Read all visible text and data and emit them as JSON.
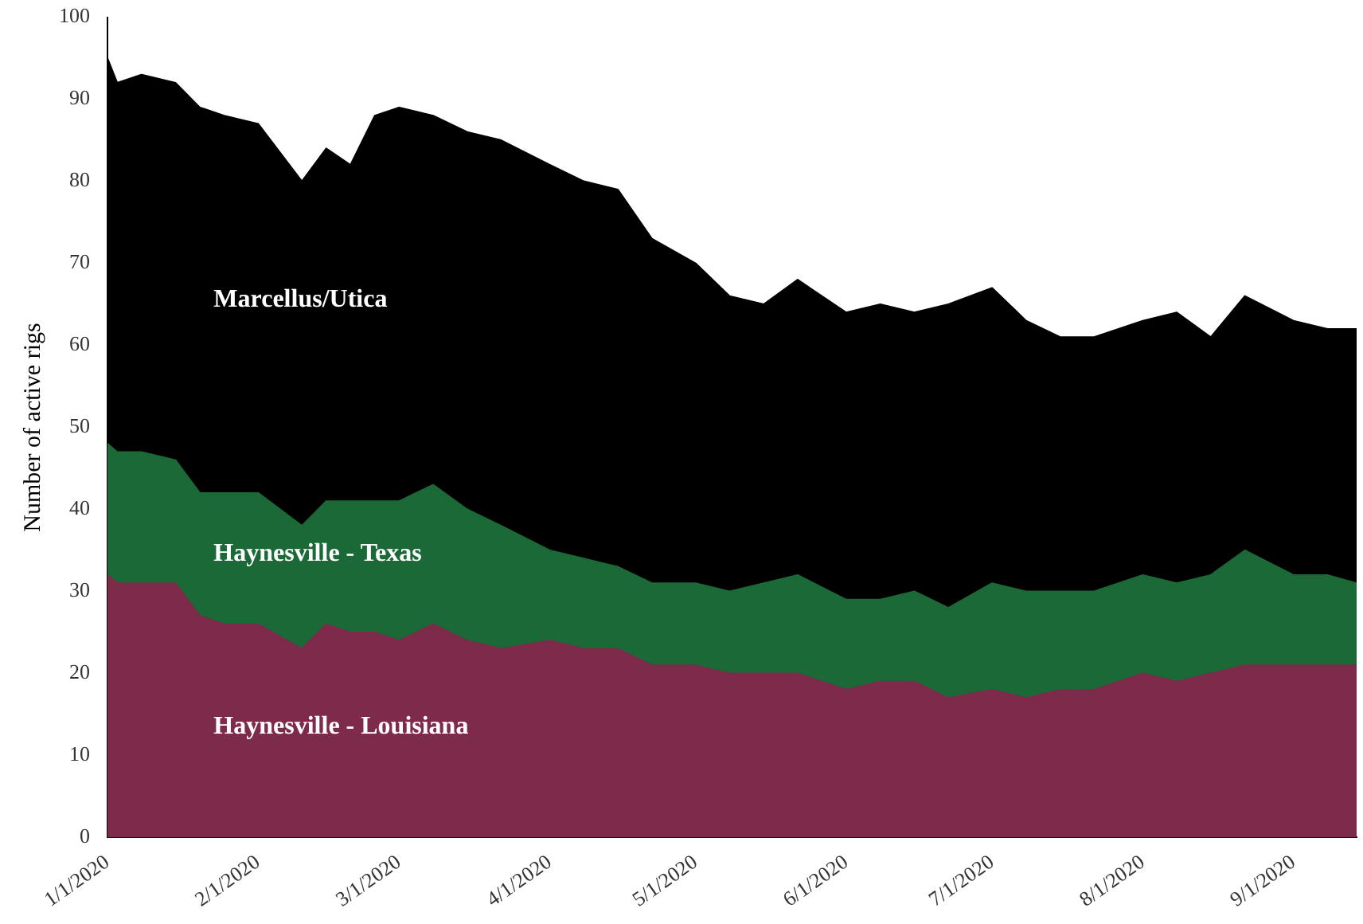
{
  "chart_data": {
    "type": "area",
    "stacked": true,
    "ylabel": "Number of active rigs",
    "x": [
      "2020-01-01",
      "2020-01-03",
      "2020-01-08",
      "2020-01-15",
      "2020-01-20",
      "2020-01-25",
      "2020-02-01",
      "2020-02-10",
      "2020-02-15",
      "2020-02-20",
      "2020-02-25",
      "2020-03-01",
      "2020-03-08",
      "2020-03-15",
      "2020-03-22",
      "2020-04-01",
      "2020-04-08",
      "2020-04-15",
      "2020-04-22",
      "2020-05-01",
      "2020-05-08",
      "2020-05-15",
      "2020-05-22",
      "2020-06-01",
      "2020-06-08",
      "2020-06-15",
      "2020-06-22",
      "2020-07-01",
      "2020-07-08",
      "2020-07-15",
      "2020-07-22",
      "2020-08-01",
      "2020-08-08",
      "2020-08-15",
      "2020-08-22",
      "2020-09-01",
      "2020-09-08",
      "2020-09-14"
    ],
    "series": [
      {
        "name": "Haynesville - Louisiana",
        "color": "#7e2a4a",
        "values": [
          32,
          31,
          31,
          31,
          27,
          26,
          26,
          23,
          26,
          25,
          25,
          24,
          26,
          24,
          23,
          24,
          23,
          23,
          21,
          21,
          20,
          20,
          20,
          18,
          19,
          19,
          17,
          18,
          17,
          18,
          18,
          20,
          19,
          20,
          21,
          21,
          21,
          21
        ]
      },
      {
        "name": "Haynesville - Texas",
        "color": "#1a6936",
        "values": [
          16,
          16,
          16,
          15,
          15,
          16,
          16,
          15,
          15,
          16,
          16,
          17,
          17,
          16,
          15,
          11,
          11,
          10,
          10,
          10,
          10,
          11,
          12,
          11,
          10,
          11,
          11,
          13,
          13,
          12,
          12,
          12,
          12,
          12,
          14,
          11,
          11,
          10
        ]
      },
      {
        "name": "Marcellus/Utica",
        "color": "#000000",
        "values": [
          47,
          45,
          46,
          46,
          47,
          46,
          45,
          42,
          43,
          41,
          47,
          48,
          45,
          46,
          47,
          47,
          46,
          46,
          42,
          39,
          36,
          34,
          36,
          35,
          36,
          34,
          37,
          36,
          33,
          31,
          31,
          31,
          33,
          29,
          31,
          31,
          30,
          31
        ]
      }
    ],
    "xlim": [
      "2020-01-01",
      "2020-09-14"
    ],
    "xticks": [
      {
        "value": "2020-01-01",
        "label": "1/1/2020"
      },
      {
        "value": "2020-02-01",
        "label": "2/1/2020"
      },
      {
        "value": "2020-03-01",
        "label": "3/1/2020"
      },
      {
        "value": "2020-04-01",
        "label": "4/1/2020"
      },
      {
        "value": "2020-05-01",
        "label": "5/1/2020"
      },
      {
        "value": "2020-06-01",
        "label": "6/1/2020"
      },
      {
        "value": "2020-07-01",
        "label": "7/1/2020"
      },
      {
        "value": "2020-08-01",
        "label": "8/1/2020"
      },
      {
        "value": "2020-09-01",
        "label": "9/1/2020"
      }
    ],
    "ylim": [
      0,
      100
    ],
    "yticks": [
      0,
      10,
      20,
      30,
      40,
      50,
      60,
      70,
      80,
      90,
      100
    ],
    "grid": false,
    "legend": false
  }
}
